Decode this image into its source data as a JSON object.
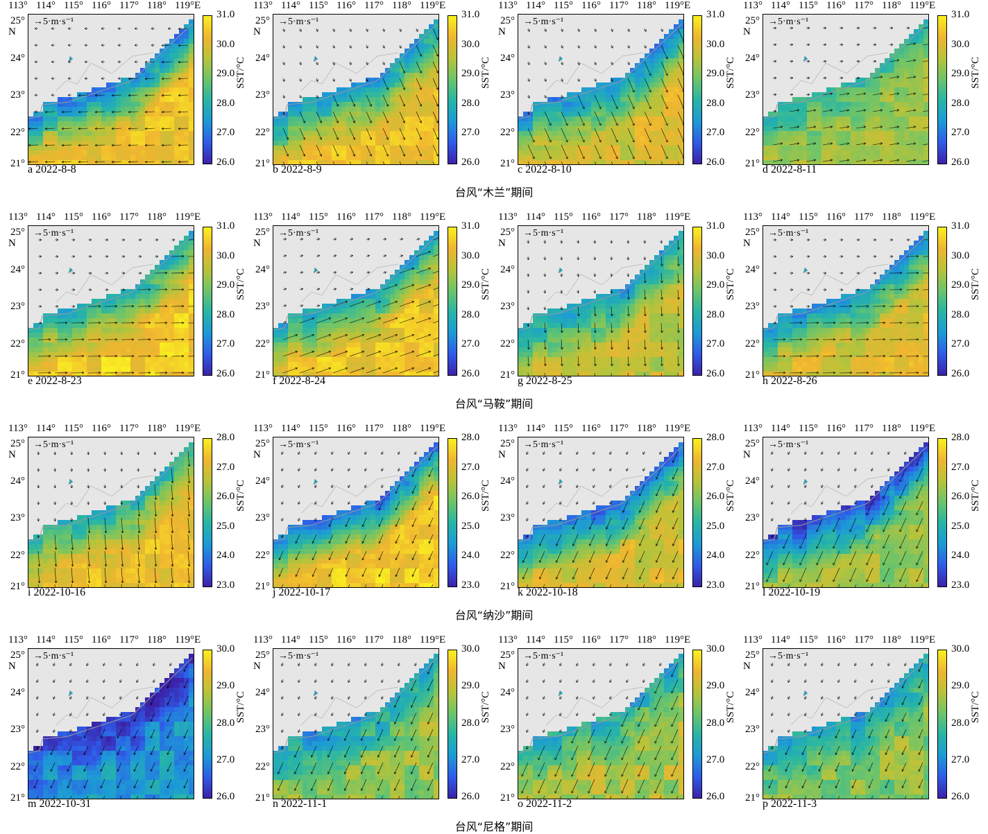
{
  "chart_data": {
    "type": "heatmap",
    "colors": {
      "land": "#e6e6e6",
      "coast": "#9a9a9a",
      "arrow": "#000000"
    },
    "colormap": [
      "#3b22a8",
      "#2f5be8",
      "#1d9ad6",
      "#27b5a6",
      "#6cc46a",
      "#b8c33a",
      "#f0b530",
      "#f9f020"
    ],
    "lon_labels": [
      "113°",
      "114°",
      "115°",
      "116°",
      "117°",
      "118°",
      "119°E"
    ],
    "lat_labels": [
      "25°",
      "24°",
      "23°",
      "22°",
      "21°"
    ],
    "lat_n": "N",
    "scale_label": "→5·m·s⁻¹",
    "colorbar_label": "SST/°C",
    "rows": [
      {
        "title": "台风“木兰”期间",
        "colorbar_ticks": [
          "31.0",
          "30.0",
          "29.0",
          "28.0",
          "27.0",
          "26.0"
        ],
        "panels": [
          {
            "caption": "a 2022-8-8",
            "date": "2022-8-8",
            "sst_offshore": 30.3,
            "sst_coastal": 27.2,
            "wind": "westward"
          },
          {
            "caption": "b 2022-8-9",
            "date": "2022-8-9",
            "sst_offshore": 30.3,
            "sst_coastal": 27.5,
            "wind": "southeast"
          },
          {
            "caption": "c 2022-8-10",
            "date": "2022-8-10",
            "sst_offshore": 29.9,
            "sst_coastal": 27.3,
            "wind": "southeast"
          },
          {
            "caption": "d 2022-8-11",
            "date": "2022-8-11",
            "sst_offshore": 29.4,
            "sst_coastal": 28.3,
            "wind": "weak"
          }
        ]
      },
      {
        "title": "台风“马鞍”期间",
        "colorbar_ticks": [
          "31.0",
          "30.0",
          "29.0",
          "28.0",
          "27.0",
          "26.0"
        ],
        "panels": [
          {
            "caption": "e 2022-8-23",
            "date": "2022-8-23",
            "sst_offshore": 30.5,
            "sst_coastal": 27.8,
            "wind": "eastward"
          },
          {
            "caption": "f 2022-8-24",
            "date": "2022-8-24",
            "sst_offshore": 30.3,
            "sst_coastal": 27.7,
            "wind": "northeast"
          },
          {
            "caption": "g 2022-8-25",
            "date": "2022-8-25",
            "sst_offshore": 29.7,
            "sst_coastal": 27.6,
            "wind": "southward"
          },
          {
            "caption": "h 2022-8-26",
            "date": "2022-8-26",
            "sst_offshore": 30.0,
            "sst_coastal": 27.4,
            "wind": "eastward"
          }
        ]
      },
      {
        "title": "台风“纳沙”期间",
        "colorbar_ticks": [
          "28.0",
          "27.0",
          "26.0",
          "25.0",
          "24.0",
          "23.0"
        ],
        "panels": [
          {
            "caption": "i 2022-10-16",
            "date": "2022-10-16",
            "sst_offshore": 27.3,
            "sst_coastal": 25.0,
            "wind": "southward"
          },
          {
            "caption": "j 2022-10-17",
            "date": "2022-10-17",
            "sst_offshore": 27.5,
            "sst_coastal": 24.0,
            "wind": "southwest"
          },
          {
            "caption": "k 2022-10-18",
            "date": "2022-10-18",
            "sst_offshore": 26.9,
            "sst_coastal": 24.0,
            "wind": "southwest"
          },
          {
            "caption": "l 2022-10-19",
            "date": "2022-10-19",
            "sst_offshore": 26.3,
            "sst_coastal": 23.5,
            "wind": "southwest"
          }
        ]
      },
      {
        "title": "台风“尼格”期间",
        "colorbar_ticks": [
          "30.0",
          "29.0",
          "28.0",
          "27.0",
          "26.0"
        ],
        "panels": [
          {
            "caption": "m 2022-10-31",
            "date": "2022-10-31",
            "sst_offshore": 27.2,
            "sst_coastal": 26.2,
            "wind": "southwest"
          },
          {
            "caption": "n 2022-11-1",
            "date": "2022-11-1",
            "sst_offshore": 28.6,
            "sst_coastal": 27.3,
            "wind": "southwest"
          },
          {
            "caption": "o 2022-11-2",
            "date": "2022-11-2",
            "sst_offshore": 28.8,
            "sst_coastal": 27.5,
            "wind": "southwest"
          },
          {
            "caption": "p 2022-11-3",
            "date": "2022-11-3",
            "sst_offshore": 28.5,
            "sst_coastal": 27.3,
            "wind": "southwest"
          }
        ]
      }
    ]
  }
}
